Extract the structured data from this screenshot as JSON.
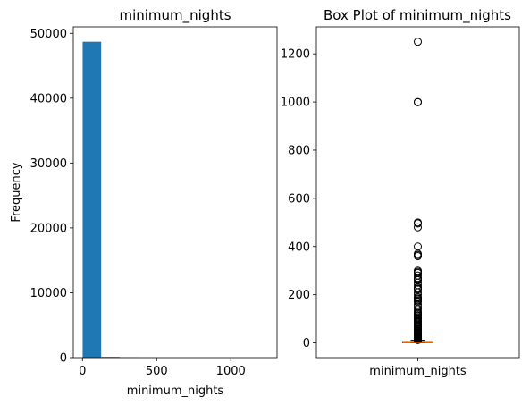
{
  "chart_data": [
    {
      "type": "bar",
      "title": "minimum_nights",
      "xlabel": "minimum_nights",
      "ylabel": "Frequency",
      "xlim": [
        -62,
        1312
      ],
      "ylim": [
        0,
        51000
      ],
      "xticks": [
        0,
        500,
        1000
      ],
      "yticks": [
        0,
        10000,
        20000,
        30000,
        40000,
        50000
      ],
      "bins": [
        {
          "start": 1,
          "end": 125.9,
          "count": 48700
        },
        {
          "start": 125.9,
          "end": 250.8,
          "count": 110
        },
        {
          "start": 250.8,
          "end": 375.7,
          "count": 40
        },
        {
          "start": 375.7,
          "end": 500.6,
          "count": 15
        },
        {
          "start": 500.6,
          "end": 625.5,
          "count": 0
        },
        {
          "start": 625.5,
          "end": 750.4,
          "count": 0
        },
        {
          "start": 750.4,
          "end": 875.3,
          "count": 0
        },
        {
          "start": 875.3,
          "end": 1000.2,
          "count": 2
        },
        {
          "start": 1000.2,
          "end": 1125.1,
          "count": 0
        },
        {
          "start": 1125.1,
          "end": 1250,
          "count": 1
        }
      ],
      "color": "#1f77b4"
    },
    {
      "type": "box",
      "title": "Box Plot of minimum_nights",
      "categories": [
        "minimum_nights"
      ],
      "ylim": [
        -61,
        1312
      ],
      "yticks": [
        0,
        200,
        400,
        600,
        800,
        1000,
        1200
      ],
      "box": {
        "whisker_low": 1,
        "q1": 1,
        "median": 3,
        "q3": 5,
        "whisker_high": 11
      },
      "outliers": [
        1250,
        1000,
        999,
        500,
        496,
        480,
        400,
        370,
        365,
        360,
        300,
        295,
        290,
        280,
        270,
        265,
        260,
        250,
        240,
        230,
        225,
        222,
        210,
        200,
        190,
        185,
        180,
        175,
        170,
        160,
        150,
        140,
        130,
        125,
        120,
        115,
        110,
        105,
        100,
        99,
        95,
        90,
        88,
        85,
        80,
        75,
        70,
        66,
        60,
        58,
        55,
        52,
        50,
        48,
        45,
        44,
        43,
        42,
        40,
        39,
        38,
        37,
        36,
        35,
        34,
        33,
        32,
        31,
        30,
        29,
        28,
        27,
        26,
        25,
        24,
        23,
        22,
        21,
        20,
        19,
        18,
        17,
        16,
        15,
        14,
        13,
        12
      ],
      "box_color": "#000000",
      "median_color": "#ff7f0e"
    }
  ]
}
